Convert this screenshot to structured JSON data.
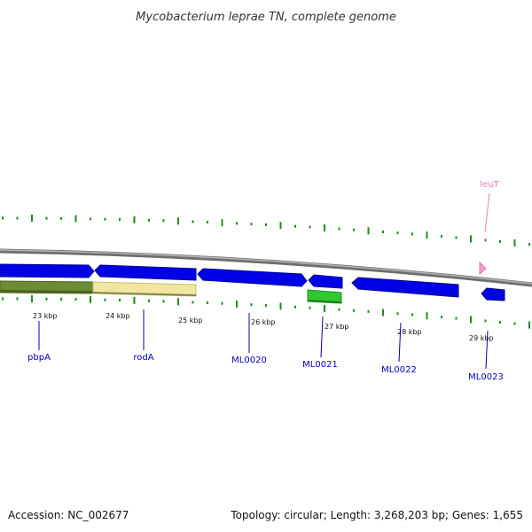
{
  "title": "Mycobacterium leprae TN, complete genome",
  "footer": {
    "accession": "Accession: NC_002677",
    "summary": "Topology: circular; Length: 3,268,203 bp; Genes: 1,655"
  },
  "colors": {
    "backbone": "#8a8a8a",
    "cds": "#0000e6",
    "cds_edge": "#00008c",
    "gene_label": "#0000b4",
    "trna": "#f5a0c8",
    "trna_label": "#f07ab4",
    "gc_dots": "#1e8c1e",
    "gene_olive": "#6b8c32",
    "gene_khaki": "#f0e6a0",
    "gene_green": "#32c832"
  },
  "scale_labels": [
    "23 kbp",
    "24 kbp",
    "25 kbp",
    "26 kbp",
    "27 kbp",
    "28 kbp",
    "29 kbp"
  ],
  "gene_labels": [
    {
      "name": "pbpA",
      "kind": "cds"
    },
    {
      "name": "rodA",
      "kind": "cds"
    },
    {
      "name": "ML0020",
      "kind": "cds"
    },
    {
      "name": "ML0021",
      "kind": "cds"
    },
    {
      "name": "ML0022",
      "kind": "cds"
    },
    {
      "name": "ML0023",
      "kind": "cds"
    },
    {
      "name": "leuT",
      "kind": "trna"
    }
  ]
}
